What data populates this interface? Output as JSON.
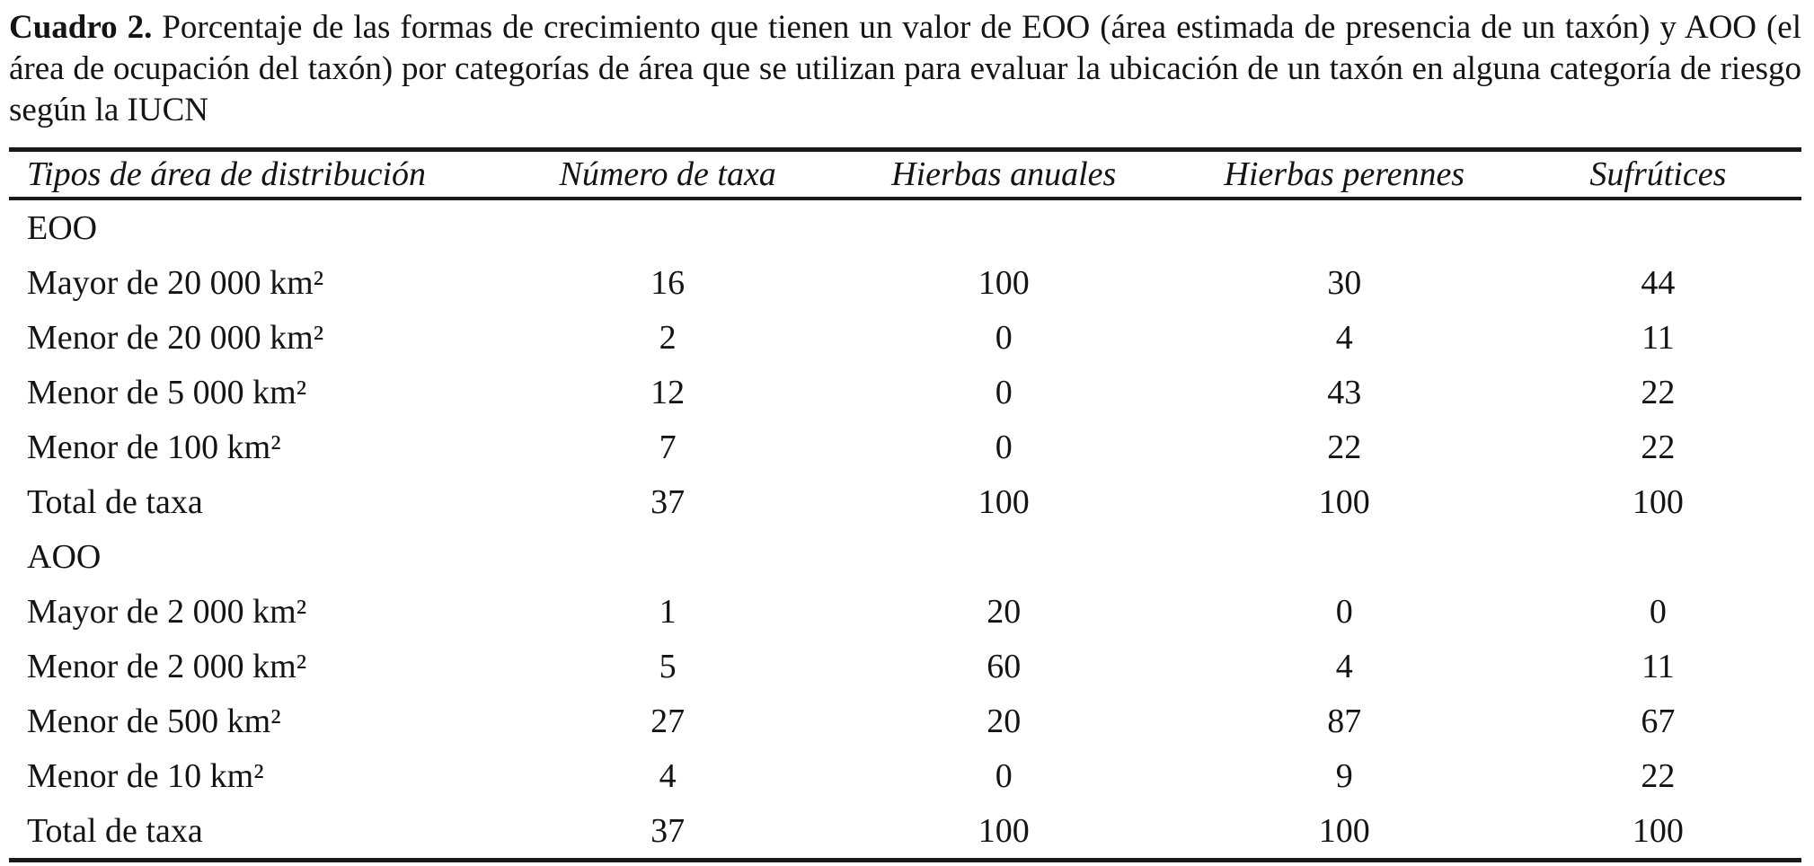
{
  "document": {
    "caption_label": "Cuadro 2.",
    "caption_text": "Porcentaje de las formas de crecimiento que tienen un valor de EOO (área estimada de presencia de un taxón) y AOO (el área de ocupación del taxón) por categorías de área que se utilizan para evaluar la ubicación de un taxón en alguna categoría de riesgo según la IUCN"
  },
  "table": {
    "headers": [
      "Tipos de área de distribución",
      "Número de taxa",
      "Hierbas anuales",
      "Hierbas perennes",
      "Sufrútices"
    ],
    "rows": [
      {
        "label": "EOO",
        "values": [
          "",
          "",
          "",
          ""
        ]
      },
      {
        "label": "Mayor de 20 000 km²",
        "values": [
          "16",
          "100",
          "30",
          "44"
        ]
      },
      {
        "label": "Menor de 20 000 km²",
        "values": [
          "2",
          "0",
          "4",
          "11"
        ]
      },
      {
        "label": "Menor de 5 000 km²",
        "values": [
          "12",
          "0",
          "43",
          "22"
        ]
      },
      {
        "label": "Menor de 100 km²",
        "values": [
          "7",
          "0",
          "22",
          "22"
        ]
      },
      {
        "label": "Total de taxa",
        "values": [
          "37",
          "100",
          "100",
          "100"
        ]
      },
      {
        "label": "AOO",
        "values": [
          "",
          "",
          "",
          ""
        ]
      },
      {
        "label": "Mayor de 2 000 km²",
        "values": [
          "1",
          "20",
          "0",
          "0"
        ]
      },
      {
        "label": "Menor de 2 000 km²",
        "values": [
          "5",
          "60",
          "4",
          "11"
        ]
      },
      {
        "label": "Menor de 500 km²",
        "values": [
          "27",
          "20",
          "87",
          "67"
        ]
      },
      {
        "label": "Menor de 10 km²",
        "values": [
          "4",
          "0",
          "9",
          "22"
        ]
      },
      {
        "label": "Total de taxa",
        "values": [
          "37",
          "100",
          "100",
          "100"
        ]
      }
    ]
  }
}
